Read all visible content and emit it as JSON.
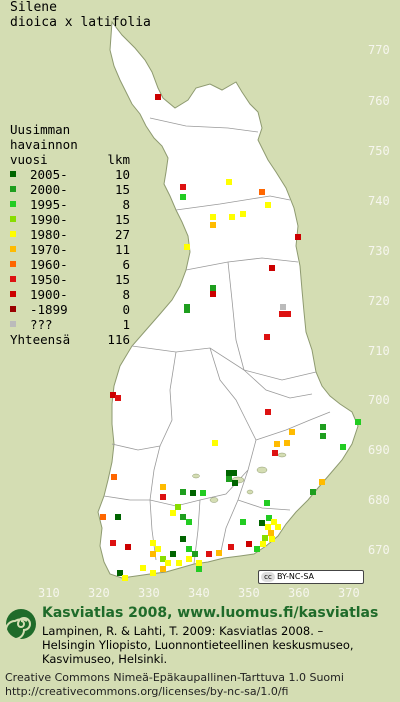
{
  "title": {
    "line1": "Silene",
    "line2": "dioica x latifolia"
  },
  "legend": {
    "header": [
      "Uusimman",
      "havainnon",
      "vuosi"
    ],
    "count_header": "lkm",
    "items": [
      {
        "label": "2005-",
        "count": "10",
        "color": "#006400"
      },
      {
        "label": "2000-",
        "count": "15",
        "color": "#1e9e1e"
      },
      {
        "label": "1995-",
        "count": "8",
        "color": "#22cc22"
      },
      {
        "label": "1990-",
        "count": "15",
        "color": "#88dd00"
      },
      {
        "label": "1980-",
        "count": "27",
        "color": "#ffff00"
      },
      {
        "label": "1970-",
        "count": "11",
        "color": "#ffbb00"
      },
      {
        "label": "1960-",
        "count": "6",
        "color": "#ff6600"
      },
      {
        "label": "1950-",
        "count": "15",
        "color": "#dd1111"
      },
      {
        "label": "1900-",
        "count": "8",
        "color": "#cc0000"
      },
      {
        "label": "-1899",
        "count": "0",
        "color": "#990000"
      },
      {
        "label": "???",
        "count": "1",
        "color": "#bbbbbb"
      }
    ],
    "total_label": "Yhteensä",
    "total": "116"
  },
  "axes": {
    "x_ticks": [
      "310",
      "320",
      "330",
      "340",
      "350",
      "360",
      "370"
    ],
    "y_ticks": [
      "770",
      "760",
      "750",
      "740",
      "730",
      "720",
      "710",
      "700",
      "690",
      "680",
      "670"
    ]
  },
  "cc_badge": "BY-NC-SA",
  "footer": {
    "brand": "Kasviatlas 2008, www.luomus.fi/kasviatlas",
    "citation": [
      "Lampinen, R. & Lahti, T. 2009: Kasviatlas 2008. –",
      "Helsingin Yliopisto, Luonnontieteellinen keskusmuseo,",
      "Kasvimuseo, Helsinki."
    ],
    "license": [
      "Creative Commons Nimeä-Epäkaupallinen-Tarttuva 1.0 Suomi",
      "http://creativecommons.org/licenses/by-nc-sa/1.0/fi"
    ]
  },
  "colors": {
    "land": "#ffffff",
    "sea": "#d4ddb3",
    "border": "#999999",
    "brand": "#1f6b2a"
  }
}
